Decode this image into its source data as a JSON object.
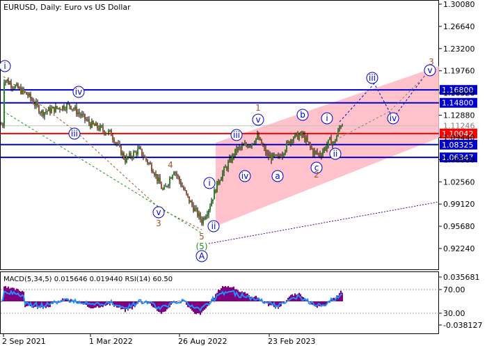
{
  "chart_data": {
    "type": "candlestick",
    "title": "EURUSD, Daily:  Euro vs US Dollar",
    "price_axis": {
      "ticks": [
        "1.30080",
        "1.26640",
        "1.23200",
        "1.19760",
        "1.16320",
        "1.12880",
        "1.09440",
        "1.06000",
        "1.02560",
        "0.99120",
        "0.95680",
        "0.92240"
      ],
      "ylim": [
        0.9015,
        1.3008
      ]
    },
    "time_axis": {
      "labels": [
        "2 Sep 2021",
        "1 Mar 2022",
        "26 Aug 2022",
        "23 Feb 2023"
      ]
    },
    "current_price": {
      "label": "1.11246",
      "value": 1.11246
    },
    "levels": [
      {
        "label": "1.16800",
        "value": 1.168,
        "color": "#0000cd"
      },
      {
        "label": "1.14800",
        "value": 1.148,
        "color": "#0000cd"
      },
      {
        "label": "1.10042",
        "value": 1.10042,
        "color": "#ff0000"
      },
      {
        "label": "1.08325",
        "value": 1.08325,
        "color": "#0000cd"
      },
      {
        "label": "1.06347",
        "value": 1.06347,
        "color": "#0000cd"
      }
    ],
    "wave_labels": [
      {
        "text": "i",
        "circled": true,
        "color": "#0000cd"
      },
      {
        "text": "iv",
        "circled": true,
        "color": "#0000cd"
      },
      {
        "text": "iii",
        "circled": true,
        "color": "#0000cd"
      },
      {
        "text": "v",
        "circled": true,
        "color": "#0000cd"
      },
      {
        "text": "4",
        "circled": false,
        "color": "#a0522d"
      },
      {
        "text": "3",
        "circled": false,
        "color": "#a0522d"
      },
      {
        "text": "5",
        "circled": false,
        "color": "#a0522d"
      },
      {
        "text": "(5)",
        "circled": false,
        "color": "#228b22"
      },
      {
        "text": "A",
        "circled": true,
        "color": "#0000cd"
      },
      {
        "text": "i",
        "circled": true,
        "color": "#0000cd"
      },
      {
        "text": "ii",
        "circled": true,
        "color": "#0000cd"
      },
      {
        "text": "iii",
        "circled": true,
        "color": "#0000cd"
      },
      {
        "text": "iv",
        "circled": true,
        "color": "#0000cd"
      },
      {
        "text": "1",
        "circled": false,
        "color": "#a0522d"
      },
      {
        "text": "v",
        "circled": true,
        "color": "#0000cd"
      },
      {
        "text": "a",
        "circled": true,
        "color": "#0000cd"
      },
      {
        "text": "b",
        "circled": true,
        "color": "#0000cd"
      },
      {
        "text": "c",
        "circled": true,
        "color": "#0000cd"
      },
      {
        "text": "2",
        "circled": false,
        "color": "#a0522d"
      },
      {
        "text": "i",
        "circled": true,
        "color": "#0000cd"
      },
      {
        "text": "ii",
        "circled": true,
        "color": "#0000cd"
      },
      {
        "text": "iii",
        "circled": true,
        "color": "#0000cd"
      },
      {
        "text": "iv",
        "circled": true,
        "color": "#0000cd"
      },
      {
        "text": "v",
        "circled": true,
        "color": "#0000cd"
      },
      {
        "text": "3",
        "circled": false,
        "color": "#a0522d"
      }
    ],
    "indicator": {
      "title": "MACD(5,34,5) 0.015646 0.019440 RSI(14) 60.50",
      "ticks": [
        "0.035681",
        "70.00",
        "30.00",
        "-0.038127"
      ]
    }
  }
}
